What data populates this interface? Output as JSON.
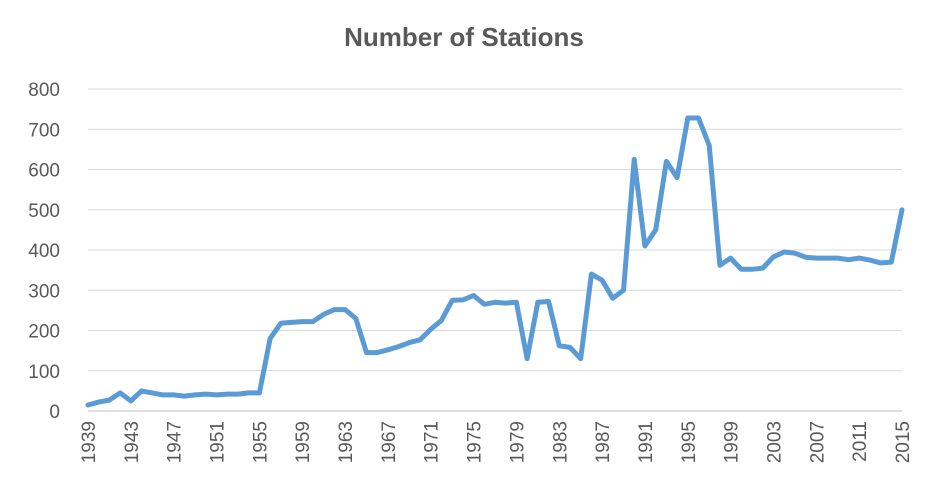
{
  "chart_data": {
    "type": "line",
    "title": "Number of Stations",
    "xlabel": "",
    "ylabel": "",
    "ylim": [
      0,
      800
    ],
    "y_ticks": [
      0,
      100,
      200,
      300,
      400,
      500,
      600,
      700,
      800
    ],
    "x_tick_labels": [
      "1939",
      "1943",
      "1947",
      "1951",
      "1955",
      "1959",
      "1963",
      "1967",
      "1971",
      "1975",
      "1979",
      "1983",
      "1987",
      "1991",
      "1995",
      "1999",
      "2003",
      "2007",
      "2011",
      "2015"
    ],
    "grid": true,
    "legend": "none",
    "series_color": "#5b9bd5",
    "series": [
      {
        "name": "Number of Stations",
        "x": [
          1939,
          1940,
          1941,
          1942,
          1943,
          1944,
          1945,
          1946,
          1947,
          1948,
          1949,
          1950,
          1951,
          1952,
          1953,
          1954,
          1955,
          1956,
          1957,
          1958,
          1959,
          1960,
          1961,
          1962,
          1963,
          1964,
          1965,
          1966,
          1967,
          1968,
          1969,
          1970,
          1971,
          1972,
          1973,
          1974,
          1975,
          1976,
          1977,
          1978,
          1979,
          1980,
          1981,
          1982,
          1983,
          1984,
          1985,
          1986,
          1987,
          1988,
          1989,
          1990,
          1991,
          1992,
          1993,
          1994,
          1995,
          1996,
          1997,
          1998,
          1999,
          2000,
          2001,
          2002,
          2003,
          2004,
          2005,
          2006,
          2007,
          2008,
          2009,
          2010,
          2011,
          2012,
          2013,
          2014,
          2015
        ],
        "values": [
          15,
          22,
          27,
          45,
          25,
          50,
          45,
          40,
          40,
          37,
          40,
          42,
          40,
          42,
          42,
          45,
          45,
          180,
          218,
          220,
          222,
          222,
          240,
          252,
          252,
          230,
          145,
          145,
          152,
          160,
          170,
          177,
          203,
          225,
          275,
          276,
          287,
          265,
          270,
          268,
          270,
          130,
          270,
          272,
          162,
          158,
          130,
          340,
          325,
          280,
          300,
          625,
          410,
          450,
          620,
          580,
          728,
          728,
          660,
          362,
          380,
          352,
          352,
          355,
          383,
          395,
          392,
          382,
          380,
          380,
          380,
          376,
          380,
          375,
          368,
          370,
          500
        ]
      }
    ]
  }
}
